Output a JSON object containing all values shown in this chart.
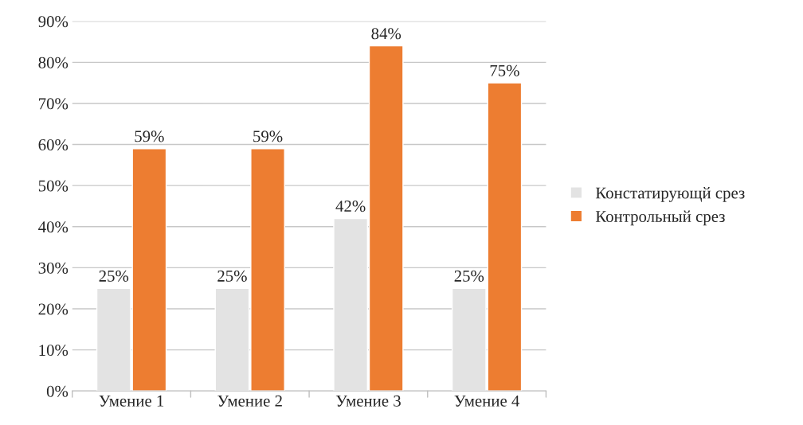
{
  "chart_data": {
    "type": "bar",
    "categories": [
      "Умение 1",
      "Умение 2",
      "Умение 3",
      "Умение 4"
    ],
    "series": [
      {
        "name": "Констатирующй срез",
        "color": "#e3e3e3",
        "values": [
          25,
          25,
          42,
          25
        ],
        "value_labels": [
          "25%",
          "25%",
          "42%",
          "25%"
        ]
      },
      {
        "name": "Контрольный срез",
        "color": "#ed7d31",
        "values": [
          59,
          59,
          84,
          75
        ],
        "value_labels": [
          "59%",
          "59%",
          "84%",
          "75%"
        ]
      }
    ],
    "ylim": [
      0,
      90
    ],
    "yticks": [
      {
        "value": 0,
        "label": "0%"
      },
      {
        "value": 10,
        "label": "10%"
      },
      {
        "value": 20,
        "label": "20%"
      },
      {
        "value": 30,
        "label": "30%"
      },
      {
        "value": 40,
        "label": "40%"
      },
      {
        "value": 50,
        "label": "50%"
      },
      {
        "value": 60,
        "label": "60%"
      },
      {
        "value": 70,
        "label": "70%"
      },
      {
        "value": 80,
        "label": "80%"
      },
      {
        "value": 90,
        "label": "90%"
      }
    ],
    "grid": "y",
    "legend": "right"
  }
}
